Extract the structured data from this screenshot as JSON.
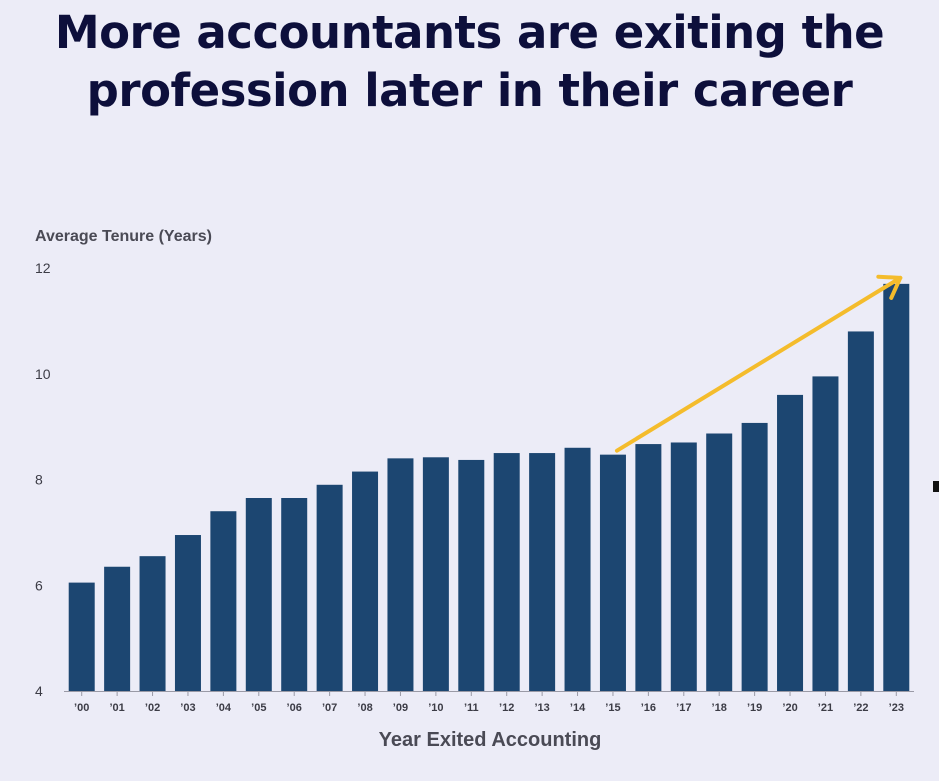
{
  "chart_data": {
    "type": "bar",
    "title": "More accountants are exiting the profession later in their career",
    "title_lines": [
      "More accountants are exiting the",
      "profession later in their career"
    ],
    "ylabel": "Average Tenure (Years)",
    "xlabel": "Year Exited Accounting",
    "ylim": [
      4,
      12
    ],
    "yticks": [
      4,
      6,
      8,
      10,
      12
    ],
    "grid": false,
    "categories": [
      "’00",
      "’01",
      "’02",
      "’03",
      "’04",
      "’05",
      "’06",
      "’07",
      "’08",
      "’09",
      "’10",
      "’11",
      "’12",
      "’13",
      "’14",
      "’15",
      "’16",
      "’17",
      "’18",
      "’19",
      "’20",
      "’21",
      "’22",
      "’23"
    ],
    "values": [
      6.05,
      6.35,
      6.55,
      6.95,
      7.4,
      7.65,
      7.65,
      7.9,
      8.15,
      8.4,
      8.42,
      8.37,
      8.5,
      8.5,
      8.6,
      8.47,
      8.67,
      8.7,
      8.87,
      9.07,
      9.6,
      9.95,
      10.8,
      11.7
    ],
    "annotations": [
      {
        "type": "arrow",
        "from_category": "’15",
        "to_category": "’23",
        "color": "#f4bc2c"
      }
    ],
    "colors": {
      "bar": "#1c4671",
      "arrow": "#f4bc2c",
      "title": "#0d0f3b",
      "background": "#ececf7"
    }
  }
}
